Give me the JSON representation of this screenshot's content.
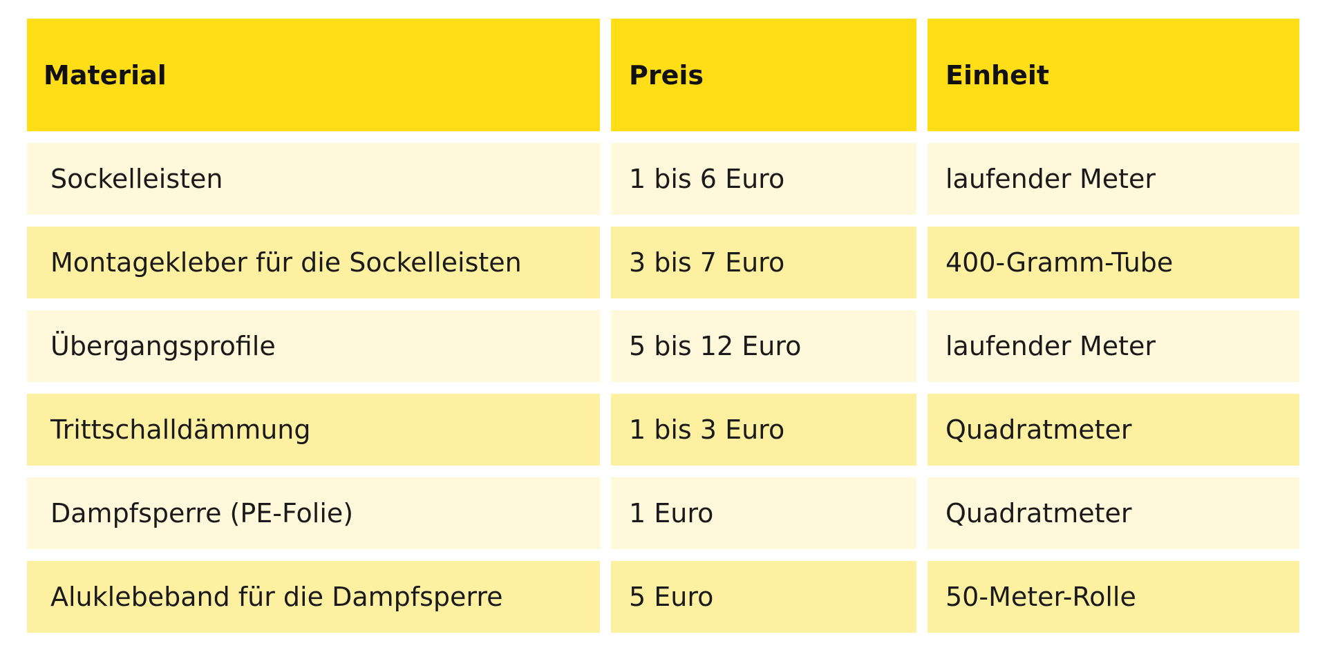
{
  "table": {
    "header": [
      "Material",
      "Preis",
      "Einheit"
    ],
    "rows": [
      [
        "Sockelleisten",
        "1 bis 6 Euro",
        "laufender Meter"
      ],
      [
        "Montagekleber für die Sockelleisten",
        "3 bis 7 Euro",
        "400-Gramm-Tube"
      ],
      [
        "Übergangsprofile",
        "5 bis 12 Euro",
        "laufender Meter"
      ],
      [
        "Trittschalldämmung",
        "1 bis 3 Euro",
        "Quadratmeter"
      ],
      [
        "Dampfsperre (PE-Folie)",
        "1 Euro",
        "Quadratmeter"
      ],
      [
        "Aluklebeband für die Dampfsperre",
        "5 Euro",
        "50-Meter-Rolle"
      ]
    ]
  }
}
